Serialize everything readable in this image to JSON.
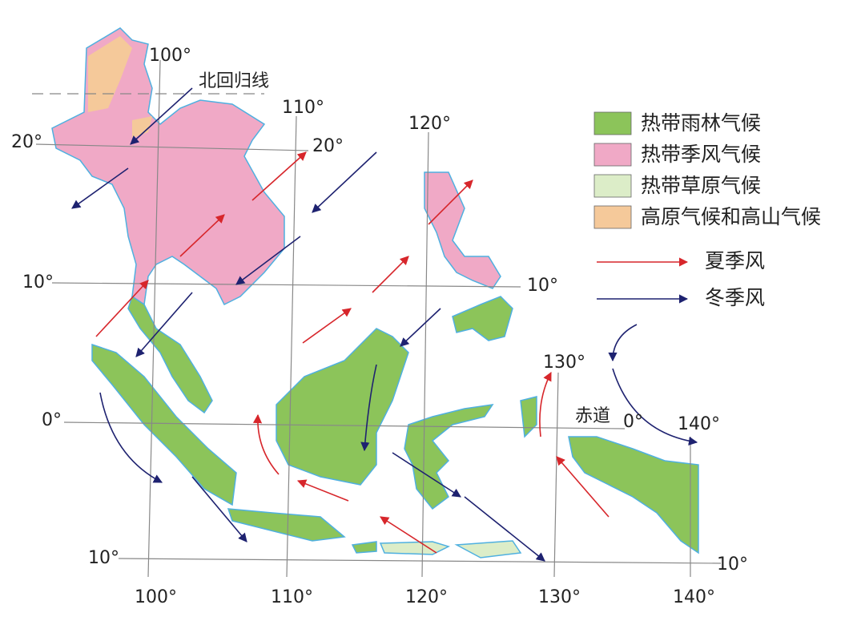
{
  "map": {
    "tropic_label": "北回归线",
    "equator_label": "赤道",
    "longitude_labels_top": [
      "100°",
      "110°",
      "120°",
      "130°",
      "140°"
    ],
    "longitude_labels_bottom": [
      "100°",
      "110°",
      "120°",
      "130°",
      "140°"
    ],
    "latitude_labels_left": [
      "20°",
      "10°",
      "0°",
      "10°"
    ],
    "latitude_labels_right": [
      "20°",
      "10°",
      "0°",
      "10°"
    ]
  },
  "legend": {
    "climates": [
      {
        "label": "热带雨林气候",
        "color": "#8cc45a"
      },
      {
        "label": "热带季风气候",
        "color": "#f0a9c6"
      },
      {
        "label": "热带草原气候",
        "color": "#dcedc8"
      },
      {
        "label": "高原气候和高山气候",
        "color": "#f5c99a"
      }
    ],
    "winds": [
      {
        "label": "夏季风",
        "color": "#d7262b"
      },
      {
        "label": "冬季风",
        "color": "#1e2270"
      }
    ]
  }
}
